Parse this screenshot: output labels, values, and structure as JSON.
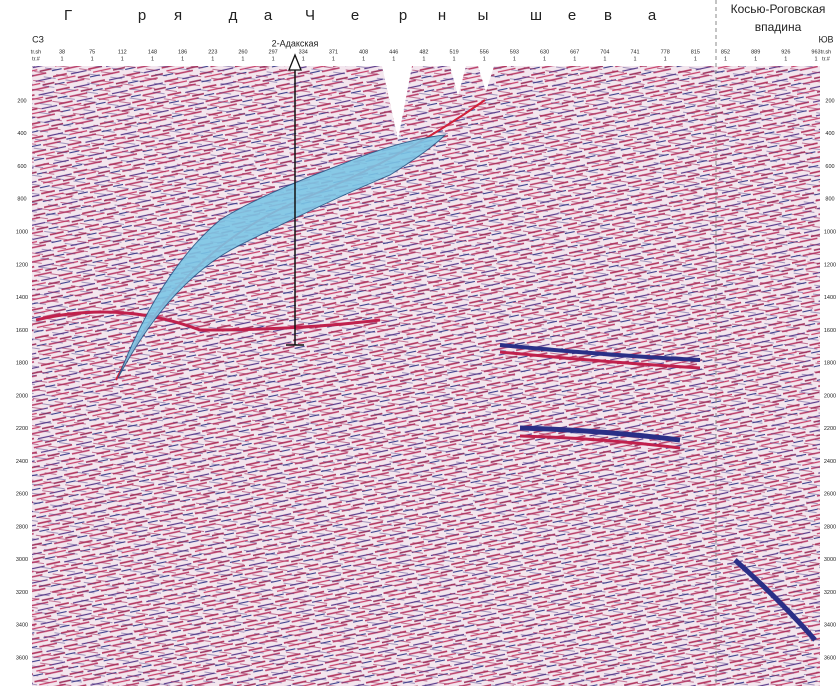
{
  "header": {
    "letters": [
      "Г",
      "р",
      "я",
      "д",
      "а",
      "Ч",
      "е",
      "р",
      "н",
      "ы",
      "ш",
      "е",
      "в",
      "а"
    ],
    "region": [
      "Косью-Роговская",
      "впадина"
    ],
    "left_label": "СЗ",
    "right_label": "ЮВ",
    "well": "2-Адакская",
    "trace_header": [
      "tr.sh",
      "tr.#"
    ]
  },
  "traces": [
    38,
    75,
    112,
    148,
    186,
    223,
    260,
    297,
    334,
    371,
    408,
    446,
    482,
    519,
    556,
    593,
    630,
    667,
    704,
    741,
    778,
    815,
    852,
    889,
    926,
    963
  ],
  "trace_sub": "1",
  "depths": [
    200,
    400,
    600,
    800,
    1000,
    1200,
    1400,
    1600,
    1800,
    2000,
    2200,
    2400,
    2600,
    2800,
    3000,
    3200,
    3400,
    3600
  ]
}
